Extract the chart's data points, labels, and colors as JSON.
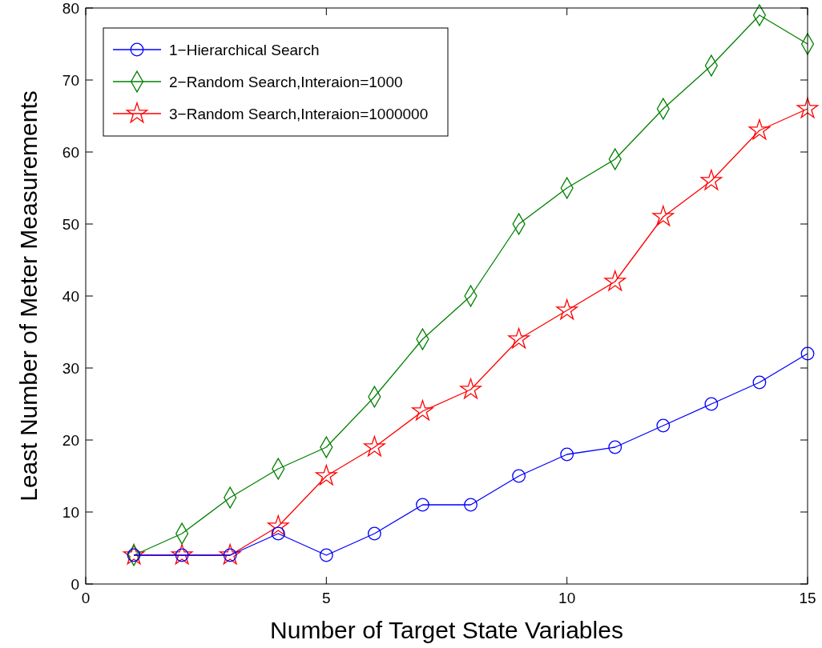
{
  "chart_data": {
    "type": "line",
    "xlabel": "Number of Target State Variables",
    "ylabel": "Least Number of Meter Measurements",
    "x": [
      1,
      2,
      3,
      4,
      5,
      6,
      7,
      8,
      9,
      10,
      11,
      12,
      13,
      14,
      15
    ],
    "series": [
      {
        "name": "1−Hierarchical Search",
        "color": "#0000ff",
        "marker": "circle",
        "values": [
          4,
          4,
          4,
          7,
          4,
          7,
          11,
          11,
          15,
          18,
          19,
          22,
          25,
          28,
          32
        ]
      },
      {
        "name": "2−Random Search,Interaion=1000",
        "color": "#008000",
        "marker": "diamond",
        "values": [
          4,
          7,
          12,
          16,
          19,
          26,
          34,
          40,
          50,
          55,
          59,
          66,
          72,
          79,
          75
        ]
      },
      {
        "name": "3−Random Search,Interaion=1000000",
        "color": "#ff0000",
        "marker": "star",
        "values": [
          4,
          4,
          4,
          8,
          15,
          19,
          24,
          27,
          34,
          38,
          42,
          51,
          56,
          63,
          66
        ]
      }
    ],
    "xlim": [
      0,
      15
    ],
    "xticks": [
      0,
      5,
      10,
      15
    ],
    "ylim": [
      0,
      80
    ],
    "yticks": [
      0,
      10,
      20,
      30,
      40,
      50,
      60,
      70,
      80
    ],
    "grid": false,
    "legend": "top left",
    "line_style": "solid"
  }
}
